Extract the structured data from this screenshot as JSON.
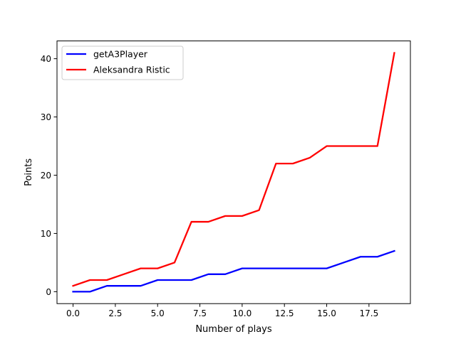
{
  "chart_data": {
    "type": "line",
    "title": "",
    "xlabel": "Number of plays",
    "ylabel": "Points",
    "xlim": [
      -0.95,
      19.95
    ],
    "ylim": [
      -2.05,
      43.05
    ],
    "xticks": [
      0.0,
      2.5,
      5.0,
      7.5,
      10.0,
      12.5,
      15.0,
      17.5
    ],
    "xtick_labels": [
      "0.0",
      "2.5",
      "5.0",
      "7.5",
      "10.0",
      "12.5",
      "15.0",
      "17.5"
    ],
    "yticks": [
      0,
      10,
      20,
      30,
      40
    ],
    "ytick_labels": [
      "0",
      "10",
      "20",
      "30",
      "40"
    ],
    "grid": false,
    "legend_position": "top-left",
    "x": [
      0,
      1,
      2,
      3,
      4,
      5,
      6,
      7,
      8,
      9,
      10,
      11,
      12,
      13,
      14,
      15,
      16,
      17,
      18,
      19
    ],
    "series": [
      {
        "name": "getA3Player",
        "color": "#0000ff",
        "values": [
          0,
          0,
          1,
          1,
          1,
          2,
          2,
          2,
          3,
          3,
          4,
          4,
          4,
          4,
          4,
          4,
          5,
          6,
          6,
          7
        ]
      },
      {
        "name": "Aleksandra Ristic",
        "color": "#ff0000",
        "values": [
          1,
          2,
          2,
          3,
          4,
          4,
          5,
          12,
          12,
          13,
          13,
          14,
          22,
          22,
          23,
          25,
          25,
          25,
          25,
          41
        ]
      }
    ]
  }
}
